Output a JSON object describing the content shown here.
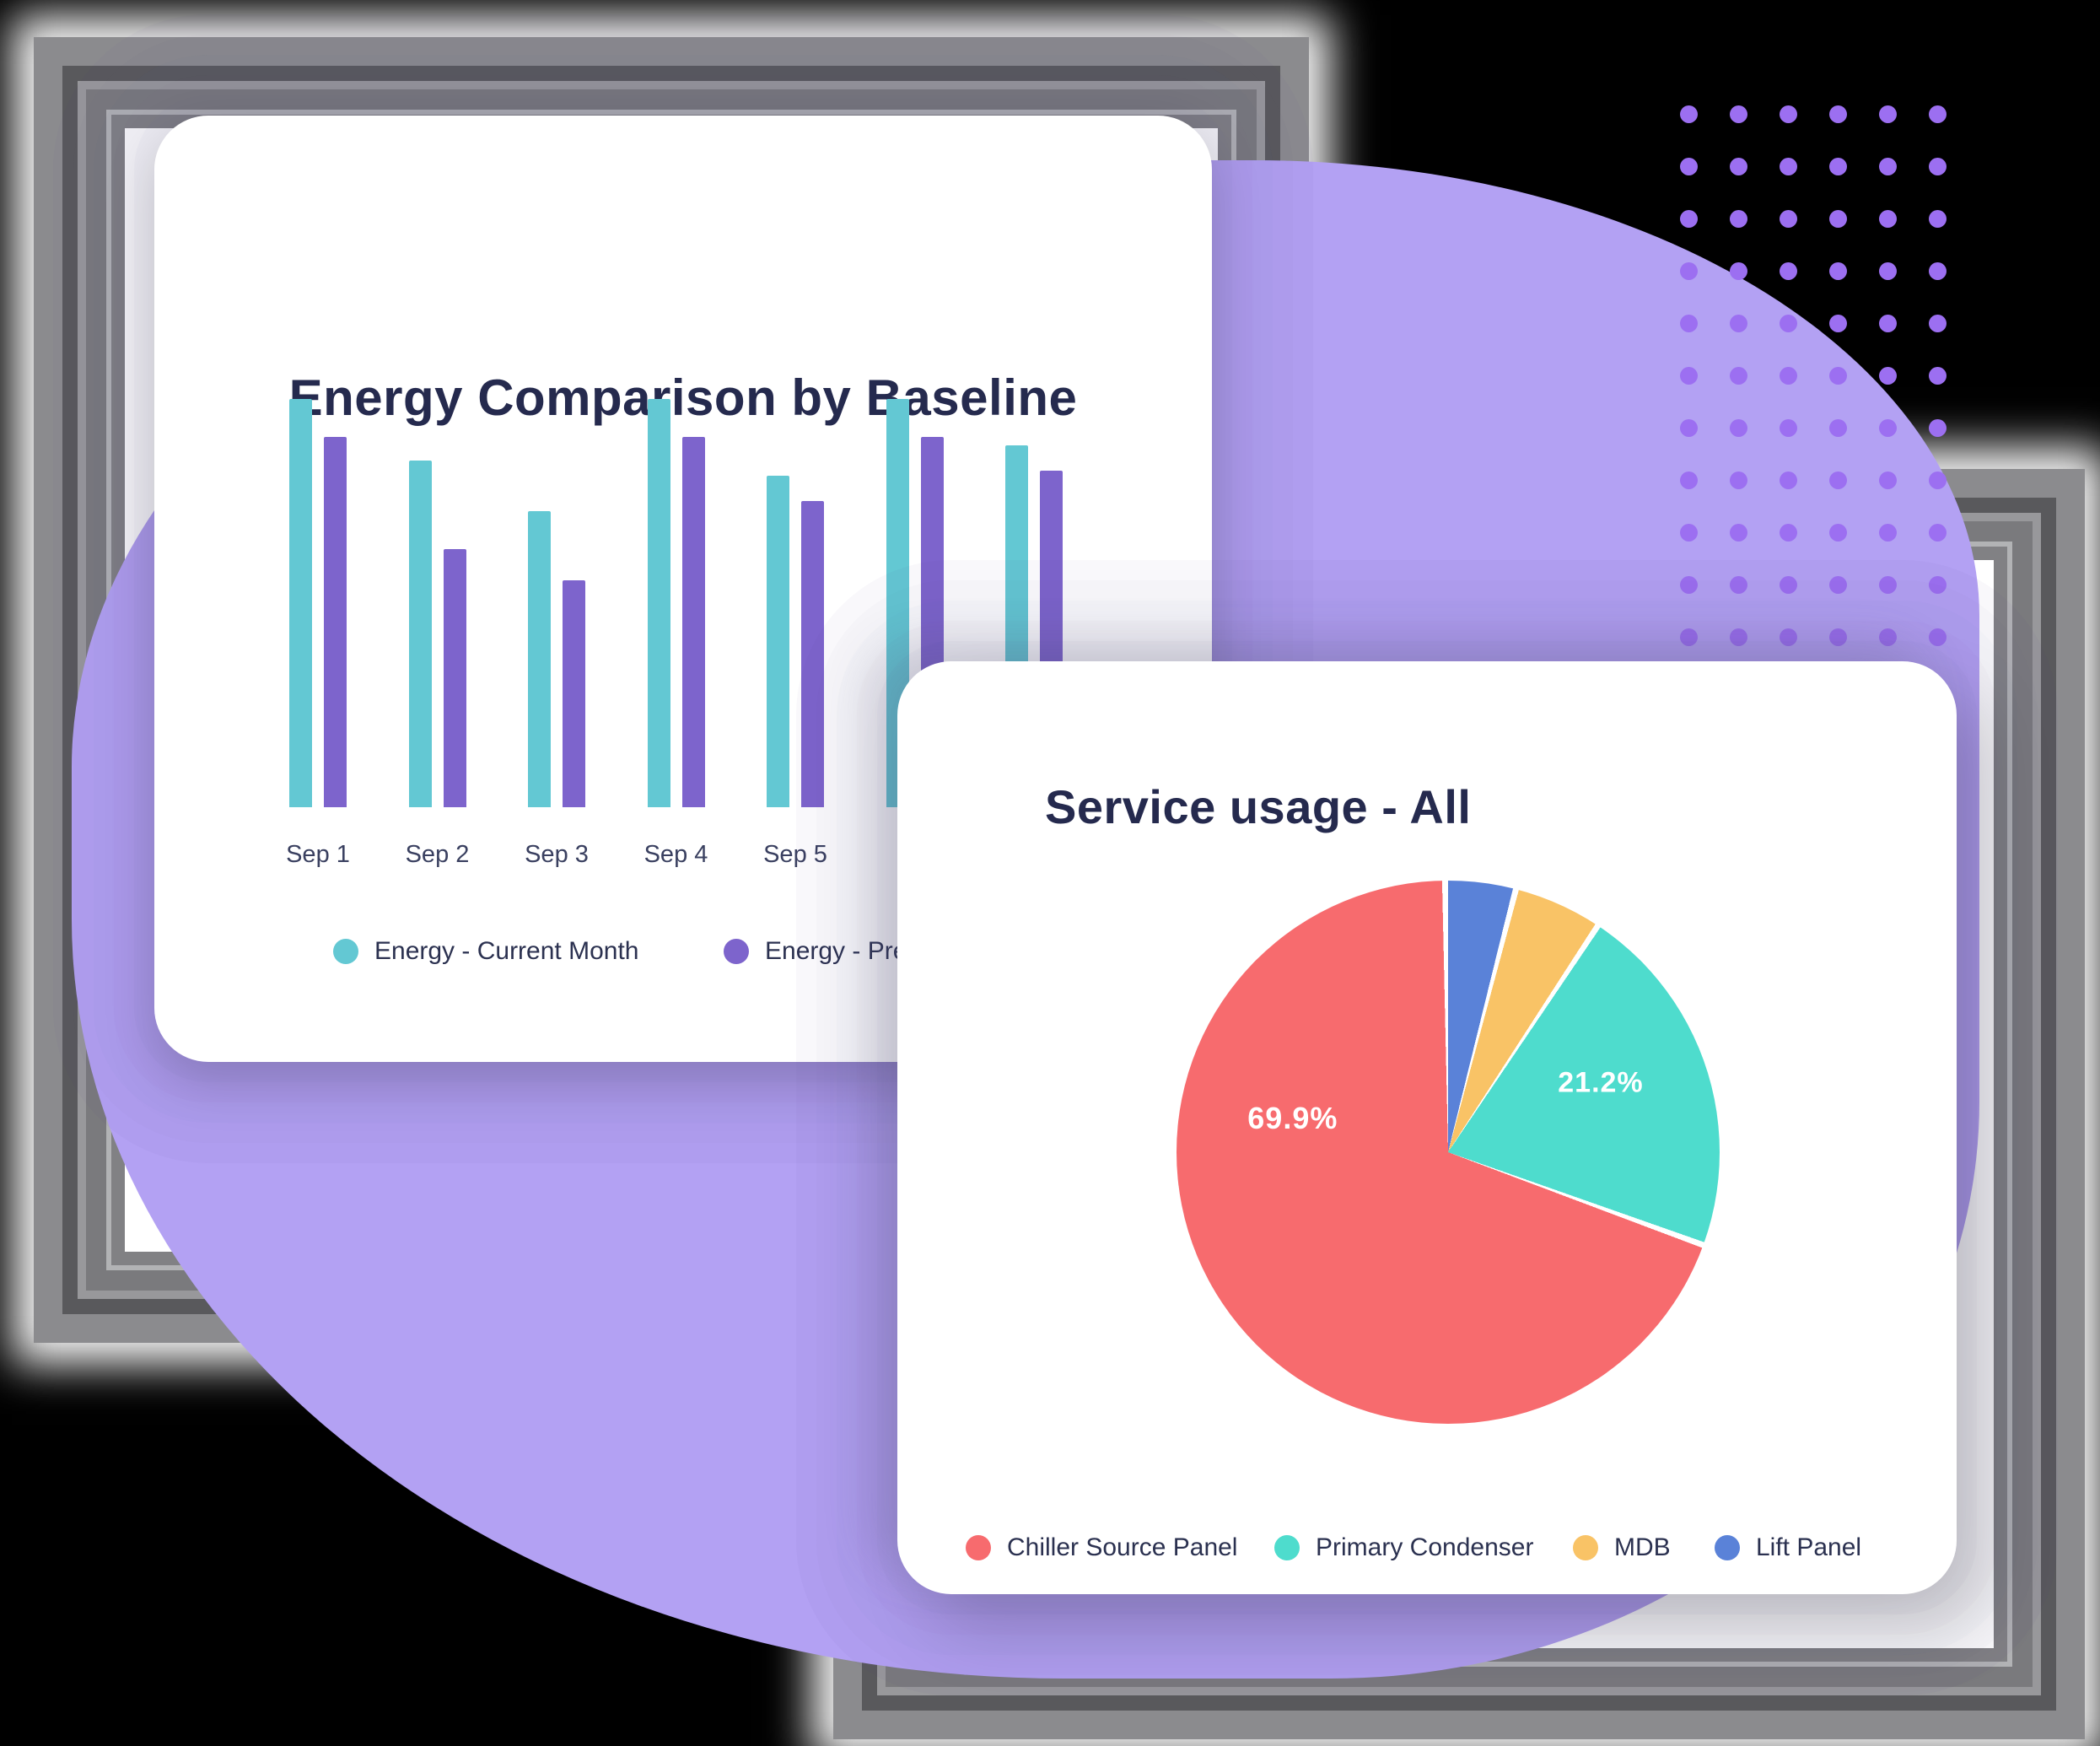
{
  "page": {
    "background": "#000000",
    "accent_purple_blob": "#B3A1F3",
    "accent_dot": "#9C6FF1"
  },
  "cards": {
    "energy": {
      "title": "Energy Comparison by Baseline"
    },
    "service": {
      "title": "Service usage - All"
    }
  },
  "chart_data": [
    {
      "type": "bar",
      "title": "Energy Comparison by Baseline",
      "categories": [
        "Sep 1",
        "Sep 2",
        "Sep 3",
        "Sep 4",
        "Sep 5",
        "",
        ""
      ],
      "series": [
        {
          "name": "Energy - Current Month",
          "color": "#63C8D3",
          "values": [
            100,
            84.9,
            72.5,
            100,
            81.2,
            100,
            88.6
          ]
        },
        {
          "name": "Energy - Pre",
          "color": "#7D64CC",
          "values": [
            90.7,
            63.2,
            55.6,
            90.7,
            75.0,
            90.7,
            82.4
          ]
        }
      ],
      "values_unit": "percent of tallest bar (no axis shown)",
      "legend_position": "bottom",
      "grid": false,
      "note": "categories 6 and 7 have labels hidden behind the front card; second legend label is cut off after 'Energy - Pre'"
    },
    {
      "type": "pie",
      "title": "Service usage - All",
      "slices": [
        {
          "label": "Chiller Source Panel",
          "value": 69.9,
          "color": "#F76B6E",
          "label_text": "69.9%",
          "label_pos": {
            "left": "21.4%",
            "top": "43.8%"
          }
        },
        {
          "label": "Primary Condenser",
          "value": 21.2,
          "color": "#4EDCCD",
          "label_text": "21.2%",
          "label_pos": {
            "left": "78.1%",
            "top": "37.3%"
          }
        },
        {
          "label": "MDB",
          "value": 5.0,
          "color": "#F9C366",
          "label_text": "",
          "label_pos": null
        },
        {
          "label": "Lift Panel",
          "value": 3.9,
          "color": "#5A82D8",
          "label_text": "",
          "label_pos": null
        }
      ],
      "draw_order_clockwise_from_top": [
        "Lift Panel",
        "MDB",
        "Primary Condenser",
        "Chiller Source Panel"
      ],
      "legend_position": "bottom",
      "grid": false
    }
  ],
  "decor": {
    "dots_grid": {
      "rows": 11,
      "cols": 6
    },
    "frame_gray_shades": [
      "#8B8B8E",
      "#59595C",
      "#98989B",
      "#7A7A7D",
      "#B2B3B5",
      "#818184"
    ]
  }
}
